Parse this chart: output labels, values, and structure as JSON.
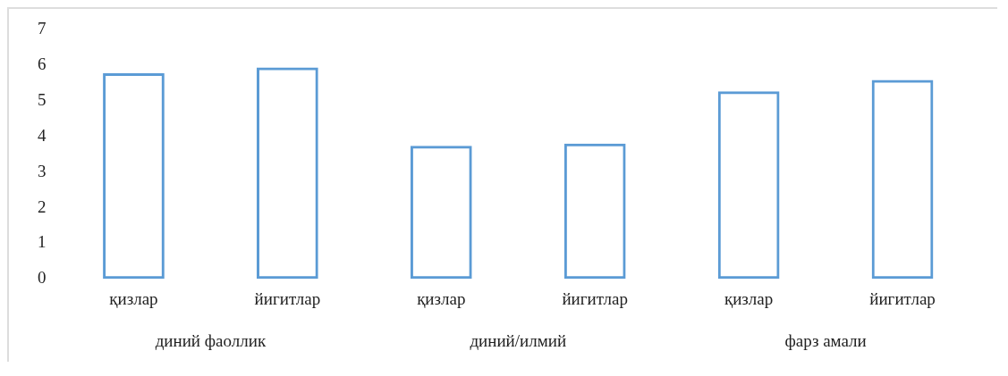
{
  "chart_data": {
    "type": "bar",
    "categories": [
      "қизлар",
      "йигитлар",
      "қизлар",
      "йигитлар",
      "қизлар",
      "йигитлар"
    ],
    "values": [
      5.78,
      5.94,
      3.74,
      3.8,
      5.27,
      5.59
    ],
    "color": "#5b9bd5",
    "ylim": [
      0,
      7
    ],
    "yticks": [
      0,
      1,
      2,
      3,
      4,
      5,
      6,
      7
    ],
    "grid": false,
    "annotations": [
      "диний фаоллик",
      "диний/илмий",
      "фарз амали"
    ]
  }
}
